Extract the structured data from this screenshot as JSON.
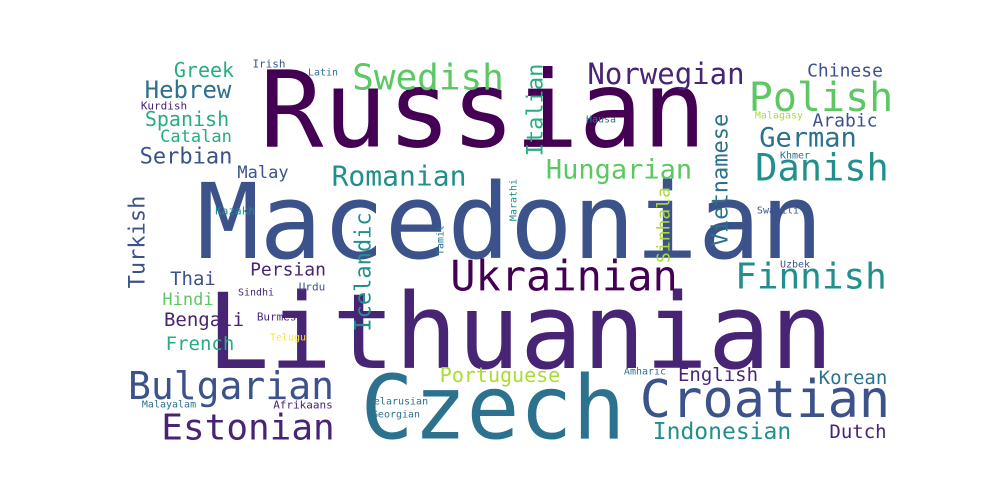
{
  "colors": {
    "background": "#ffffff",
    "dark_purple": "#440154",
    "purple": "#482475",
    "indigo": "#3b528b",
    "blue": "#2c728e",
    "teal": "#21908d",
    "green": "#27ad81",
    "light_green": "#5dc863",
    "yellow_green": "#aadc32",
    "yellow": "#fde725"
  },
  "words": [
    {
      "text": "Russian",
      "color": "dark_purple"
    },
    {
      "text": "Macedonian",
      "color": "indigo"
    },
    {
      "text": "Lithuanian",
      "color": "purple"
    },
    {
      "text": "Czech",
      "color": "blue"
    },
    {
      "text": "Croatian",
      "color": "indigo"
    },
    {
      "text": "Ukrainian",
      "color": "dark_purple"
    },
    {
      "text": "Bulgarian",
      "color": "indigo"
    },
    {
      "text": "Estonian",
      "color": "purple"
    },
    {
      "text": "Swedish",
      "color": "light_green"
    },
    {
      "text": "Norwegian",
      "color": "purple"
    },
    {
      "text": "Polish",
      "color": "light_green"
    },
    {
      "text": "Danish",
      "color": "teal"
    },
    {
      "text": "Finnish",
      "color": "teal"
    },
    {
      "text": "Romanian",
      "color": "teal"
    },
    {
      "text": "Hungarian",
      "color": "light_green"
    },
    {
      "text": "German",
      "color": "blue"
    },
    {
      "text": "Hebrew",
      "color": "blue"
    },
    {
      "text": "Serbian",
      "color": "indigo"
    },
    {
      "text": "Greek",
      "color": "green"
    },
    {
      "text": "Spanish",
      "color": "green"
    },
    {
      "text": "Catalan",
      "color": "green"
    },
    {
      "text": "Chinese",
      "color": "indigo"
    },
    {
      "text": "Arabic",
      "color": "indigo"
    },
    {
      "text": "Italian",
      "color": "green"
    },
    {
      "text": "Vietnamese",
      "color": "blue"
    },
    {
      "text": "Icelandic",
      "color": "teal"
    },
    {
      "text": "Turkish",
      "color": "indigo"
    },
    {
      "text": "Indonesian",
      "color": "teal"
    },
    {
      "text": "Portuguese",
      "color": "yellow_green"
    },
    {
      "text": "English",
      "color": "purple"
    },
    {
      "text": "Korean",
      "color": "blue"
    },
    {
      "text": "Dutch",
      "color": "purple"
    },
    {
      "text": "Thai",
      "color": "indigo"
    },
    {
      "text": "Hindi",
      "color": "light_green"
    },
    {
      "text": "Bengali",
      "color": "purple"
    },
    {
      "text": "French",
      "color": "green"
    },
    {
      "text": "Malay",
      "color": "indigo"
    },
    {
      "text": "Persian",
      "color": "purple"
    },
    {
      "text": "Sinhala",
      "color": "yellow_green"
    },
    {
      "text": "Irish",
      "color": "indigo"
    },
    {
      "text": "Latin",
      "color": "blue"
    },
    {
      "text": "Kurdish",
      "color": "purple"
    },
    {
      "text": "Hausa",
      "color": "blue"
    },
    {
      "text": "Malagasy",
      "color": "yellow_green"
    },
    {
      "text": "Khmer",
      "color": "blue"
    },
    {
      "text": "Kazakh",
      "color": "teal"
    },
    {
      "text": "Marathi",
      "color": "teal"
    },
    {
      "text": "Tamil",
      "color": "blue"
    },
    {
      "text": "Swahili",
      "color": "indigo"
    },
    {
      "text": "Uzbek",
      "color": "indigo"
    },
    {
      "text": "Sindhi",
      "color": "purple"
    },
    {
      "text": "Urdu",
      "color": "indigo"
    },
    {
      "text": "Burmese",
      "color": "purple"
    },
    {
      "text": "Telugu",
      "color": "yellow"
    },
    {
      "text": "Amharic",
      "color": "blue"
    },
    {
      "text": "Malayalam",
      "color": "blue"
    },
    {
      "text": "Afrikaans",
      "color": "purple"
    },
    {
      "text": "Belarusian",
      "color": "blue"
    },
    {
      "text": "Georgian",
      "color": "blue"
    }
  ]
}
